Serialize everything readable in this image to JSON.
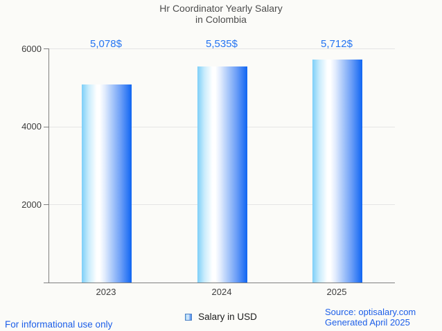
{
  "title": {
    "line1": "Hr Coordinator Yearly Salary",
    "line2": "in Colombia"
  },
  "chart_data": {
    "type": "bar",
    "title": "Hr Coordinator Yearly Salary in Colombia",
    "categories": [
      "2023",
      "2024",
      "2025"
    ],
    "series": [
      {
        "name": "Salary in USD",
        "values": [
          5078,
          5535,
          5712
        ]
      }
    ],
    "value_labels": [
      "5,078$",
      "5,535$",
      "5,712$"
    ],
    "xlabel": "",
    "ylabel": "",
    "ylim": [
      0,
      6000
    ],
    "yticks": [
      2000,
      4000,
      6000
    ],
    "grid": true,
    "legend_position": "bottom"
  },
  "legend": {
    "label": "Salary in USD"
  },
  "footer": {
    "disclaimer": "For informational use only",
    "source": "Source: optisalary.com",
    "generated": "Generated April 2025"
  },
  "colors": {
    "background": "#fbfbf8",
    "title_text": "#4d4d4d",
    "value_label": "#2474f2",
    "bar_gradient_left": "#7dcff8",
    "bar_gradient_mid": "#ffffff",
    "bar_gradient_right": "#0f65f2",
    "axis_line": "#7f7f7f",
    "gridline": "#e4e4e4",
    "tick_label": "#3d3d3d",
    "legend_text": "#1c1c1c",
    "footer_link": "#1c5ee8"
  }
}
